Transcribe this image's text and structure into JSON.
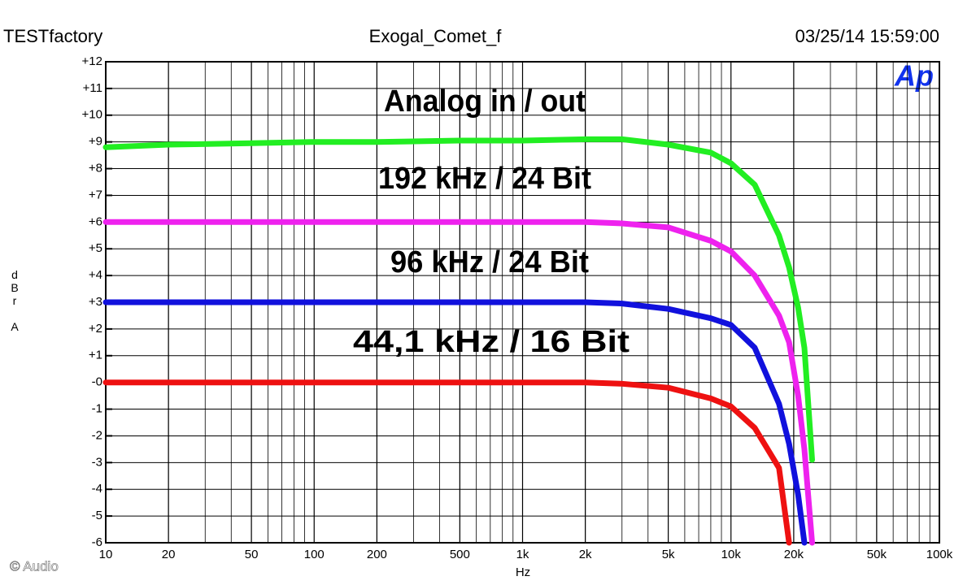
{
  "chart_data": {
    "type": "line",
    "header": {
      "left": "TESTfactory",
      "center": "Exogal_Comet_f",
      "right": "03/25/14 15:59:00"
    },
    "y_label": "dBr A",
    "x_label": "Hz",
    "logo": "Ap",
    "credit": "© Audio",
    "annotations": [
      "Analog in / out",
      "192 kHz / 24 Bit",
      "96 kHz / 24 Bit",
      "44,1 kHz / 16 Bit"
    ],
    "x_scale": "log",
    "grid": true,
    "xlim": [
      10,
      100000
    ],
    "ylim": [
      -6,
      12
    ],
    "xticks": [
      10,
      20,
      50,
      100,
      200,
      500,
      {
        "value": 1000,
        "label": "1k"
      },
      {
        "value": 2000,
        "label": "2k"
      },
      {
        "value": 5000,
        "label": "5k"
      },
      {
        "value": 10000,
        "label": "10k"
      },
      {
        "value": 20000,
        "label": "20k"
      },
      {
        "value": 50000,
        "label": "50k"
      },
      {
        "value": 100000,
        "label": "100k"
      }
    ],
    "yticks": [
      {
        "value": 12,
        "label": "+12"
      },
      {
        "value": 11,
        "label": "+11"
      },
      {
        "value": 10,
        "label": "+10"
      },
      {
        "value": 9,
        "label": "+9"
      },
      {
        "value": 8,
        "label": "+8"
      },
      {
        "value": 7,
        "label": "+7"
      },
      {
        "value": 6,
        "label": "+6"
      },
      {
        "value": 5,
        "label": "+5"
      },
      {
        "value": 4,
        "label": "+4"
      },
      {
        "value": 3,
        "label": "+3"
      },
      {
        "value": 2,
        "label": "+2"
      },
      {
        "value": 1,
        "label": "+1"
      },
      {
        "value": 0,
        "label": "-0"
      },
      -1,
      -2,
      -3,
      -4,
      -5,
      -6
    ],
    "x": [
      10,
      20,
      50,
      100,
      200,
      500,
      1000,
      2000,
      3000,
      5000,
      8000,
      10000,
      13000,
      17000,
      19000,
      21000,
      22500,
      24500
    ],
    "series": [
      {
        "color": "#22ee22",
        "values": [
          8.8,
          8.9,
          8.95,
          9.0,
          9.0,
          9.05,
          9.05,
          9.1,
          9.1,
          8.9,
          8.6,
          8.2,
          7.4,
          5.5,
          4.3,
          2.8,
          1.3,
          -2.9
        ]
      },
      {
        "color": "#ee22ee",
        "values": [
          6,
          6,
          6,
          6,
          6,
          6,
          6,
          6,
          5.95,
          5.8,
          5.3,
          4.9,
          4.0,
          2.5,
          1.5,
          -0.5,
          -2.5,
          -6
        ]
      },
      {
        "color": "#1111dd",
        "values": [
          3,
          3,
          3,
          3,
          3,
          3,
          3,
          3,
          2.95,
          2.75,
          2.4,
          2.15,
          1.3,
          -0.8,
          -2.3,
          -4.2,
          -6,
          null
        ]
      },
      {
        "color": "#ee1111",
        "values": [
          0,
          0,
          0,
          0,
          0,
          0,
          0,
          0,
          -0.05,
          -0.2,
          -0.6,
          -0.9,
          -1.7,
          -3.2,
          -6,
          null,
          null,
          null
        ]
      }
    ]
  }
}
